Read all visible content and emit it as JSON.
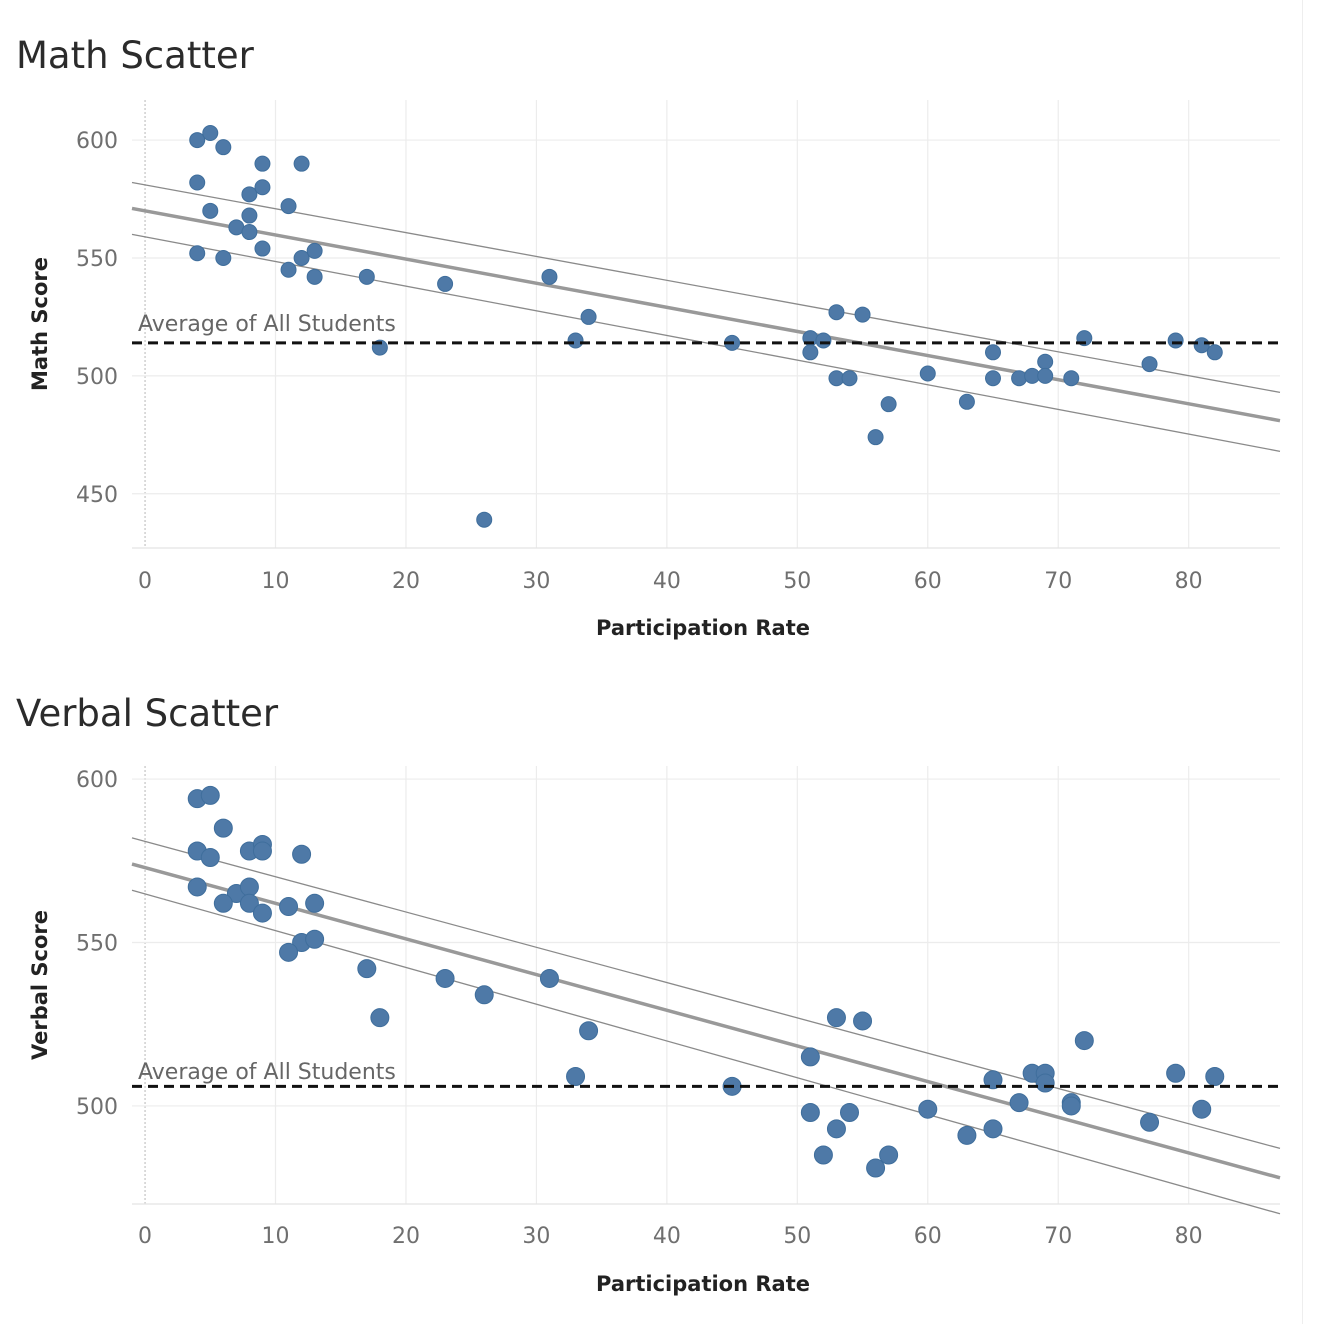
{
  "charts": [
    {
      "title": "Math Scatter",
      "xlabel": "Participation Rate",
      "ylabel": "Math Score",
      "reference_line_label": "Average of All Students"
    },
    {
      "title": "Verbal Scatter",
      "xlabel": "Participation Rate",
      "ylabel": "Verbal Score",
      "reference_line_label": "Average of All Students"
    }
  ],
  "chart_data": [
    {
      "type": "scatter",
      "title": "Math Scatter",
      "xlabel": "Participation Rate",
      "ylabel": "Math Score",
      "xlim": [
        -1,
        87
      ],
      "ylim": [
        427,
        617
      ],
      "x_ticks": [
        0,
        10,
        20,
        30,
        40,
        50,
        60,
        70,
        80
      ],
      "y_ticks": [
        450,
        500,
        550,
        600
      ],
      "grid": true,
      "point_color": "#4e79a7",
      "reference_line": {
        "label": "Average of All Students",
        "y": 514,
        "style": "dashed",
        "color": "#111111"
      },
      "trend_line": {
        "x": [
          -1,
          87
        ],
        "y": [
          571,
          481
        ],
        "color": "#999999"
      },
      "confidence_band": {
        "upper": {
          "x": [
            -1,
            87
          ],
          "y": [
            582,
            493
          ]
        },
        "lower": {
          "x": [
            -1,
            87
          ],
          "y": [
            560,
            468
          ]
        }
      },
      "series": [
        {
          "x": [
            4,
            5,
            6,
            4,
            5,
            9,
            12,
            8,
            9,
            11,
            7,
            8,
            8,
            9,
            4,
            6,
            12,
            13,
            11,
            13,
            17,
            23,
            31,
            18,
            33,
            34,
            26,
            45,
            51,
            51,
            52,
            53,
            55,
            53,
            54,
            56,
            57,
            60,
            63,
            65,
            65,
            67,
            68,
            69,
            69,
            71,
            72,
            77,
            79,
            81,
            82
          ],
          "y": [
            600,
            603,
            597,
            582,
            570,
            590,
            590,
            577,
            580,
            572,
            563,
            568,
            561,
            554,
            552,
            550,
            550,
            553,
            545,
            542,
            542,
            539,
            542,
            512,
            515,
            525,
            439,
            514,
            516,
            510,
            515,
            527,
            526,
            499,
            499,
            474,
            488,
            501,
            489,
            510,
            499,
            499,
            500,
            506,
            500,
            499,
            516,
            505,
            515,
            513,
            510
          ]
        }
      ]
    },
    {
      "type": "scatter",
      "title": "Verbal Scatter",
      "xlabel": "Participation Rate",
      "ylabel": "Verbal Score",
      "xlim": [
        -1,
        87
      ],
      "ylim": [
        470,
        604
      ],
      "x_ticks": [
        0,
        10,
        20,
        30,
        40,
        50,
        60,
        70,
        80
      ],
      "y_ticks": [
        500,
        550,
        600
      ],
      "grid": true,
      "point_color": "#4e79a7",
      "reference_line": {
        "label": "Average of All Students",
        "y": 506,
        "style": "dashed",
        "color": "#111111"
      },
      "trend_line": {
        "x": [
          -1,
          87
        ],
        "y": [
          574,
          478
        ],
        "color": "#999999"
      },
      "confidence_band": {
        "upper": {
          "x": [
            -1,
            87
          ],
          "y": [
            582,
            487
          ]
        },
        "lower": {
          "x": [
            -1,
            87
          ],
          "y": [
            566,
            467
          ]
        }
      },
      "series": [
        {
          "x": [
            4,
            5,
            6,
            4,
            5,
            8,
            9,
            9,
            12,
            4,
            7,
            8,
            6,
            8,
            9,
            11,
            13,
            12,
            13,
            11,
            17,
            23,
            26,
            31,
            18,
            34,
            33,
            45,
            51,
            53,
            55,
            51,
            52,
            53,
            54,
            56,
            57,
            60,
            63,
            65,
            65,
            67,
            68,
            69,
            69,
            71,
            71,
            72,
            77,
            79,
            81,
            82
          ],
          "y": [
            594,
            595,
            585,
            578,
            576,
            578,
            580,
            578,
            577,
            567,
            565,
            567,
            562,
            562,
            559,
            561,
            562,
            550,
            551,
            547,
            542,
            539,
            534,
            539,
            527,
            523,
            509,
            506,
            515,
            527,
            526,
            498,
            485,
            493,
            498,
            481,
            485,
            499,
            491,
            508,
            493,
            501,
            510,
            510,
            507,
            501,
            500,
            520,
            495,
            510,
            499,
            509
          ]
        }
      ]
    }
  ]
}
